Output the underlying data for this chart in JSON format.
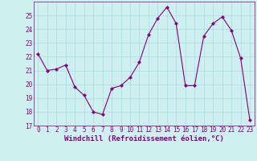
{
  "x": [
    0,
    1,
    2,
    3,
    4,
    5,
    6,
    7,
    8,
    9,
    10,
    11,
    12,
    13,
    14,
    15,
    16,
    17,
    18,
    19,
    20,
    21,
    22,
    23
  ],
  "y": [
    22.2,
    21.0,
    21.1,
    21.4,
    19.8,
    19.2,
    18.0,
    17.8,
    19.7,
    19.9,
    20.5,
    21.6,
    23.6,
    24.8,
    25.6,
    24.4,
    19.9,
    19.9,
    23.5,
    24.4,
    24.9,
    23.9,
    21.9,
    17.4
  ],
  "line_color": "#800080",
  "marker": "D",
  "marker_size": 2,
  "bg_color": "#cff0f0",
  "grid_color": "#aadddd",
  "xlabel": "Windchill (Refroidissement éolien,°C)",
  "ylim": [
    17,
    26
  ],
  "xlim": [
    -0.5,
    23.5
  ],
  "yticks": [
    17,
    18,
    19,
    20,
    21,
    22,
    23,
    24,
    25
  ],
  "xticks": [
    0,
    1,
    2,
    3,
    4,
    5,
    6,
    7,
    8,
    9,
    10,
    11,
    12,
    13,
    14,
    15,
    16,
    17,
    18,
    19,
    20,
    21,
    22,
    23
  ],
  "tick_fontsize": 5.5,
  "xlabel_fontsize": 6.5,
  "spine_color": "#800080",
  "linewidth": 0.8
}
